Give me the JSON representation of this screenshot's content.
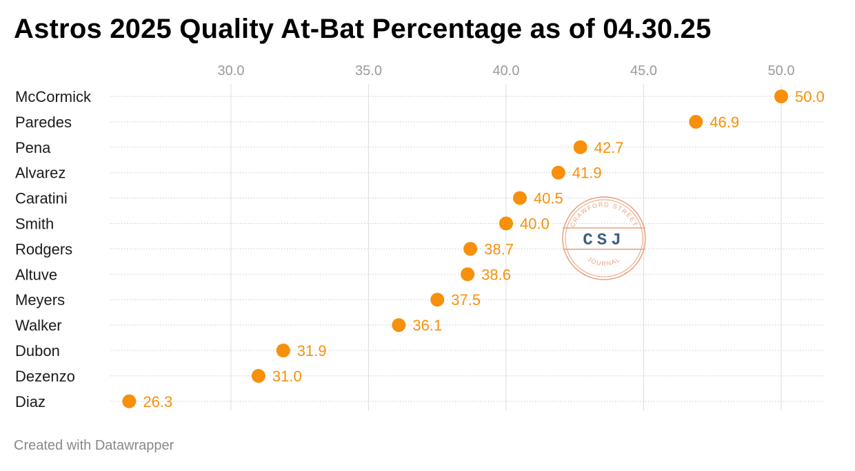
{
  "title": "Astros 2025 Quality At-Bat Percentage as of 04.30.25",
  "footer": "Created with Datawrapper",
  "watermark": {
    "top_text": "CRAWFORD STREET",
    "center_text": "CSJ",
    "bottom_text": "JOURNAL"
  },
  "colors": {
    "accent": "#f7900a",
    "grid": "#dddddd",
    "tick": "#9a9a9a",
    "watermark": "#e9a07c",
    "watermark_text": "#3f5f82"
  },
  "chart_data": {
    "type": "scatter",
    "title": "Astros 2025 Quality At-Bat Percentage as of 04.30.25",
    "xlabel": "",
    "ylabel": "",
    "xlim": [
      25.8,
      51.6
    ],
    "x_ticks": [
      "30.0",
      "35.0",
      "40.0",
      "45.0",
      "50.0"
    ],
    "x_tick_values": [
      30,
      35,
      40,
      45,
      50
    ],
    "grid": true,
    "categories": [
      "McCormick",
      "Paredes",
      "Pena",
      "Alvarez",
      "Caratini",
      "Smith",
      "Rodgers",
      "Altuve",
      "Meyers",
      "Walker",
      "Dubon",
      "Dezenzo",
      "Diaz"
    ],
    "values": [
      50.0,
      46.9,
      42.7,
      41.9,
      40.5,
      40.0,
      38.7,
      38.6,
      37.5,
      36.1,
      31.9,
      31.0,
      26.3
    ],
    "value_labels": [
      "50.0",
      "46.9",
      "42.7",
      "41.9",
      "40.5",
      "40.0",
      "38.7",
      "38.6",
      "37.5",
      "36.1",
      "31.9",
      "31.0",
      "26.3"
    ]
  }
}
